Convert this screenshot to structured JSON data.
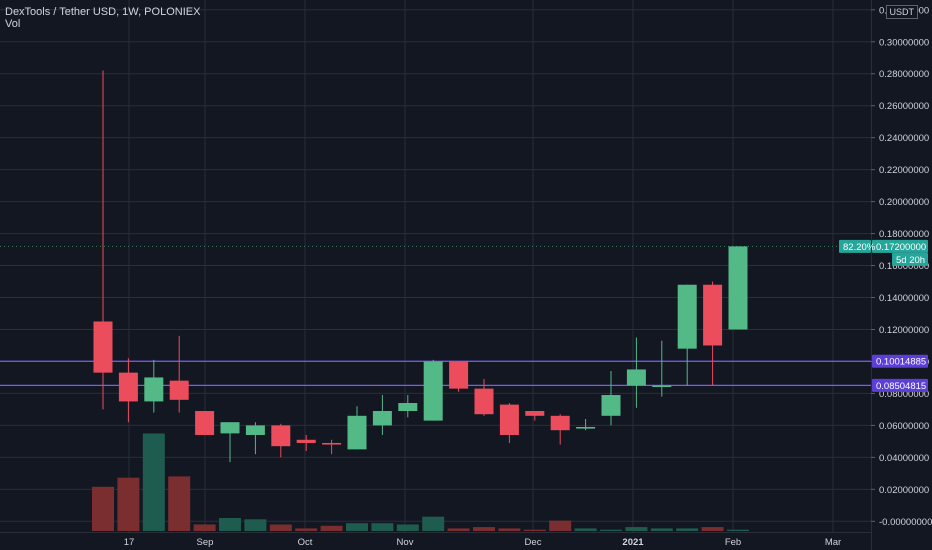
{
  "header": {
    "symbol_line": "DexTools / Tether USD, 1W, POLONIEX",
    "indicator": "Vol",
    "currency_badge": "USDT"
  },
  "colors": {
    "background": "#131722",
    "grid": "#2a2e39",
    "up": "#53b987",
    "down": "#eb4d5c",
    "vol_up": "#1e5c4f",
    "vol_down": "#7a2e30",
    "level_line": "#7b5cf0",
    "axis_text": "#d1d4dc"
  },
  "chart_data": {
    "type": "candlestick",
    "title": "DexTools / Tether USD, 1W, POLONIEX",
    "x_tick_labels": [
      "17",
      "Sep",
      "Oct",
      "Nov",
      "Dec",
      "2021",
      "Feb",
      "Mar"
    ],
    "y_tick_labels": [
      "-0.00000000",
      "0.02000000",
      "0.04000000",
      "0.06000000",
      "0.08000000",
      "0.10000000",
      "0.12000000",
      "0.14000000",
      "0.16000000",
      "0.18000000",
      "0.20000000",
      "0.22000000",
      "0.24000000",
      "0.26000000",
      "0.28000000",
      "0.30000000",
      "0.32000000"
    ],
    "ylim": [
      -0.002,
      0.323
    ],
    "candles": [
      {
        "o": 0.125,
        "h": 0.282,
        "l": 0.07,
        "c": 0.093
      },
      {
        "o": 0.093,
        "h": 0.102,
        "l": 0.062,
        "c": 0.075
      },
      {
        "o": 0.075,
        "h": 0.101,
        "l": 0.068,
        "c": 0.09
      },
      {
        "o": 0.088,
        "h": 0.116,
        "l": 0.068,
        "c": 0.076
      },
      {
        "o": 0.069,
        "h": 0.069,
        "l": 0.054,
        "c": 0.054
      },
      {
        "o": 0.055,
        "h": 0.062,
        "l": 0.037,
        "c": 0.062
      },
      {
        "o": 0.054,
        "h": 0.062,
        "l": 0.042,
        "c": 0.06
      },
      {
        "o": 0.06,
        "h": 0.061,
        "l": 0.04,
        "c": 0.047
      },
      {
        "o": 0.051,
        "h": 0.054,
        "l": 0.044,
        "c": 0.049
      },
      {
        "o": 0.049,
        "h": 0.051,
        "l": 0.042,
        "c": 0.048
      },
      {
        "o": 0.045,
        "h": 0.072,
        "l": 0.045,
        "c": 0.066
      },
      {
        "o": 0.06,
        "h": 0.079,
        "l": 0.054,
        "c": 0.069
      },
      {
        "o": 0.069,
        "h": 0.079,
        "l": 0.065,
        "c": 0.074
      },
      {
        "o": 0.063,
        "h": 0.101,
        "l": 0.063,
        "c": 0.1
      },
      {
        "o": 0.1,
        "h": 0.1,
        "l": 0.081,
        "c": 0.083
      },
      {
        "o": 0.083,
        "h": 0.089,
        "l": 0.066,
        "c": 0.067
      },
      {
        "o": 0.073,
        "h": 0.074,
        "l": 0.049,
        "c": 0.054
      },
      {
        "o": 0.069,
        "h": 0.069,
        "l": 0.063,
        "c": 0.066
      },
      {
        "o": 0.066,
        "h": 0.067,
        "l": 0.048,
        "c": 0.057
      },
      {
        "o": 0.058,
        "h": 0.064,
        "l": 0.057,
        "c": 0.059
      },
      {
        "o": 0.066,
        "h": 0.094,
        "l": 0.06,
        "c": 0.079
      },
      {
        "o": 0.085,
        "h": 0.115,
        "l": 0.071,
        "c": 0.095
      },
      {
        "o": 0.084,
        "h": 0.113,
        "l": 0.078,
        "c": 0.085
      },
      {
        "o": 0.108,
        "h": 0.148,
        "l": 0.085,
        "c": 0.148
      },
      {
        "o": 0.148,
        "h": 0.15,
        "l": 0.085,
        "c": 0.11
      },
      {
        "o": 0.12,
        "h": 0.172,
        "l": 0.12,
        "c": 0.172
      }
    ],
    "volume_relative": [
      0.34,
      0.41,
      0.75,
      0.42,
      0.05,
      0.1,
      0.09,
      0.05,
      0.02,
      0.04,
      0.06,
      0.06,
      0.05,
      0.11,
      0.02,
      0.03,
      0.02,
      0.01,
      0.08,
      0.02,
      0.01,
      0.03,
      0.02,
      0.02,
      0.03,
      0.01
    ],
    "volume_direction": [
      "down",
      "down",
      "up",
      "down",
      "down",
      "up",
      "up",
      "down",
      "down",
      "down",
      "up",
      "up",
      "up",
      "up",
      "down",
      "down",
      "down",
      "down",
      "down",
      "up",
      "up",
      "up",
      "up",
      "up",
      "down",
      "up"
    ],
    "level_lines": [
      {
        "value": 0.10014885,
        "label": "0.10014885"
      },
      {
        "value": 0.08504815,
        "label": "0.08504815"
      }
    ],
    "last_price": {
      "value": 0.172,
      "label": "0.17200000",
      "change_label": "82.20%",
      "countdown_label": "5d 20h"
    },
    "grid": true
  }
}
